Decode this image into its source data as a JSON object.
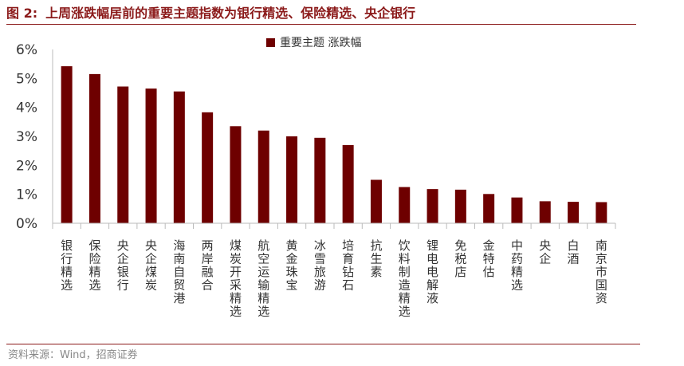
{
  "figure": {
    "number": "图 2:",
    "title": "上周涨跌幅居前的重要主题指数为银行精选、保险精选、央企银行",
    "source": "资料来源：Wind，招商证券"
  },
  "colors": {
    "bar": "#6E0000",
    "title": "#8B1A1A",
    "axis": "#bbbbbb"
  },
  "chart_data": {
    "type": "bar",
    "title": "",
    "xlabel": "",
    "ylabel": "",
    "legend": "重要主题 涨跌幅",
    "legend_position": "top-center",
    "grid": false,
    "ylim": [
      0,
      6
    ],
    "yticks": [
      0,
      1,
      2,
      3,
      4,
      5,
      6
    ],
    "ytick_labels": [
      "0%",
      "1%",
      "2%",
      "3%",
      "4%",
      "5%",
      "6%"
    ],
    "categories": [
      "银行精选",
      "保险精选",
      "央企银行",
      "央企煤炭",
      "海南自贸港",
      "两岸融合",
      "煤炭开采精选",
      "航空运输精选",
      "黄金珠宝",
      "冰雪旅游",
      "培育钻石",
      "抗生素",
      "饮料制造精选",
      "锂电电解液",
      "免税店",
      "金特估",
      "中药精选",
      "央企",
      "白酒",
      "南京市国资"
    ],
    "values": [
      5.42,
      5.15,
      4.72,
      4.65,
      4.55,
      3.83,
      3.35,
      3.2,
      3.0,
      2.95,
      2.7,
      1.5,
      1.25,
      1.18,
      1.16,
      1.01,
      0.89,
      0.76,
      0.74,
      0.73
    ]
  }
}
